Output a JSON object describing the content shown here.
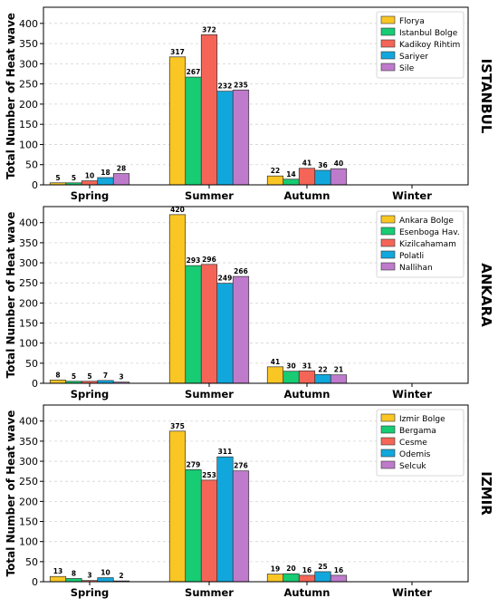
{
  "chart_data": [
    {
      "type": "bar",
      "panel_label": "ISTANBUL",
      "ylabel": "Total Number of Heat wave",
      "categories": [
        "Spring",
        "Summer",
        "Autumn",
        "Winter"
      ],
      "ylim": [
        0,
        440
      ],
      "yticks": [
        0,
        50,
        100,
        150,
        200,
        250,
        300,
        350,
        400
      ],
      "grid": true,
      "legend_position": "top-right",
      "series": [
        {
          "name": "Florya",
          "color": "#F9C624",
          "values": [
            5,
            317,
            22,
            null
          ]
        },
        {
          "name": "Istanbul Bolge",
          "color": "#17CC73",
          "values": [
            5,
            267,
            14,
            null
          ]
        },
        {
          "name": "Kadikoy Rihtim",
          "color": "#F46557",
          "values": [
            10,
            372,
            41,
            null
          ]
        },
        {
          "name": "Sariyer",
          "color": "#12A7DC",
          "values": [
            18,
            232,
            36,
            null
          ]
        },
        {
          "name": "Sile",
          "color": "#BF7BCB",
          "values": [
            28,
            235,
            40,
            null
          ]
        }
      ]
    },
    {
      "type": "bar",
      "panel_label": "ANKARA",
      "ylabel": "Total Number of Heat wave",
      "categories": [
        "Spring",
        "Summer",
        "Autumn",
        "Winter"
      ],
      "ylim": [
        0,
        440
      ],
      "yticks": [
        0,
        50,
        100,
        150,
        200,
        250,
        300,
        350,
        400
      ],
      "grid": true,
      "legend_position": "top-right",
      "series": [
        {
          "name": "Ankara Bolge",
          "color": "#F9C624",
          "values": [
            8,
            420,
            41,
            null
          ]
        },
        {
          "name": "Esenboga Hav.",
          "color": "#17CC73",
          "values": [
            5,
            293,
            30,
            null
          ]
        },
        {
          "name": "Kizilcahamam",
          "color": "#F46557",
          "values": [
            5,
            296,
            31,
            null
          ]
        },
        {
          "name": "Polatli",
          "color": "#12A7DC",
          "values": [
            7,
            249,
            22,
            null
          ]
        },
        {
          "name": "Nallihan",
          "color": "#BF7BCB",
          "values": [
            3,
            266,
            21,
            null
          ]
        }
      ]
    },
    {
      "type": "bar",
      "panel_label": "IZMIR",
      "ylabel": "Total Number of Heat wave",
      "categories": [
        "Spring",
        "Summer",
        "Autumn",
        "Winter"
      ],
      "ylim": [
        0,
        440
      ],
      "yticks": [
        0,
        50,
        100,
        150,
        200,
        250,
        300,
        350,
        400
      ],
      "grid": true,
      "legend_position": "top-right",
      "series": [
        {
          "name": "Izmir Bolge",
          "color": "#F9C624",
          "values": [
            13,
            375,
            19,
            null
          ]
        },
        {
          "name": "Bergama",
          "color": "#17CC73",
          "values": [
            8,
            279,
            20,
            null
          ]
        },
        {
          "name": "Cesme",
          "color": "#F46557",
          "values": [
            3,
            253,
            16,
            null
          ]
        },
        {
          "name": "Odemis",
          "color": "#12A7DC",
          "values": [
            10,
            311,
            25,
            null
          ]
        },
        {
          "name": "Selcuk",
          "color": "#BF7BCB",
          "values": [
            2,
            276,
            16,
            null
          ]
        }
      ]
    }
  ]
}
